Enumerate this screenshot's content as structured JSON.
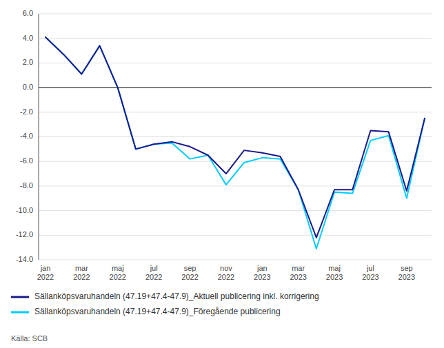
{
  "chart_data": {
    "type": "line",
    "categories": [
      "jan\n2022",
      null,
      "mar\n2022",
      null,
      "maj\n2022",
      null,
      "jul\n2022",
      null,
      "sep\n2022",
      null,
      "nov\n2022",
      null,
      "jan\n2023",
      null,
      "mar\n2023",
      null,
      "maj\n2023",
      null,
      "jul\n2023",
      null,
      "sep\n2023",
      null
    ],
    "series": [
      {
        "name": "Sällanköpsvaruhandeln (47.19+47.4-47.9)_Aktuell publicering inkl. korrigering",
        "color": "#1A1A8C",
        "values": [
          4.1,
          2.7,
          1.1,
          3.4,
          0.0,
          -5.0,
          -4.6,
          -4.4,
          -4.8,
          -5.5,
          -7.0,
          -5.1,
          -5.3,
          -5.6,
          -8.3,
          -12.2,
          -8.3,
          -8.3,
          -3.5,
          -3.6,
          -8.4,
          -2.5
        ]
      },
      {
        "name": "Sällanköpsvaruhandeln (47.19+47.4-47.9)_Föregående publicering",
        "color": "#00CCFF",
        "values": [
          4.1,
          2.7,
          1.1,
          3.4,
          0.0,
          -5.0,
          -4.6,
          -4.5,
          -5.8,
          -5.5,
          -7.9,
          -6.1,
          -5.7,
          -5.8,
          -8.3,
          -13.1,
          -8.5,
          -8.6,
          -4.3,
          -3.9,
          -9.0,
          -2.5
        ]
      }
    ],
    "ylim": [
      -14.0,
      6.0
    ],
    "yticks": [
      {
        "value": -14.0,
        "label": "-14.0"
      },
      {
        "value": -12.0,
        "label": "-12.0"
      },
      {
        "value": -10.0,
        "label": "-10.0"
      },
      {
        "value": -8.0,
        "label": "-8.0"
      },
      {
        "value": -6.0,
        "label": "-6.0"
      },
      {
        "value": -4.0,
        "label": "-4.0"
      },
      {
        "value": -2.0,
        "label": "-2.0"
      },
      {
        "value": 0.0,
        "label": "0.0"
      },
      {
        "value": 2.0,
        "label": "2.0"
      },
      {
        "value": 4.0,
        "label": "4.0"
      },
      {
        "value": 6.0,
        "label": "6.0"
      }
    ],
    "grid": true,
    "legend": "bottom",
    "annotations": [
      "Källa: SCB"
    ]
  }
}
